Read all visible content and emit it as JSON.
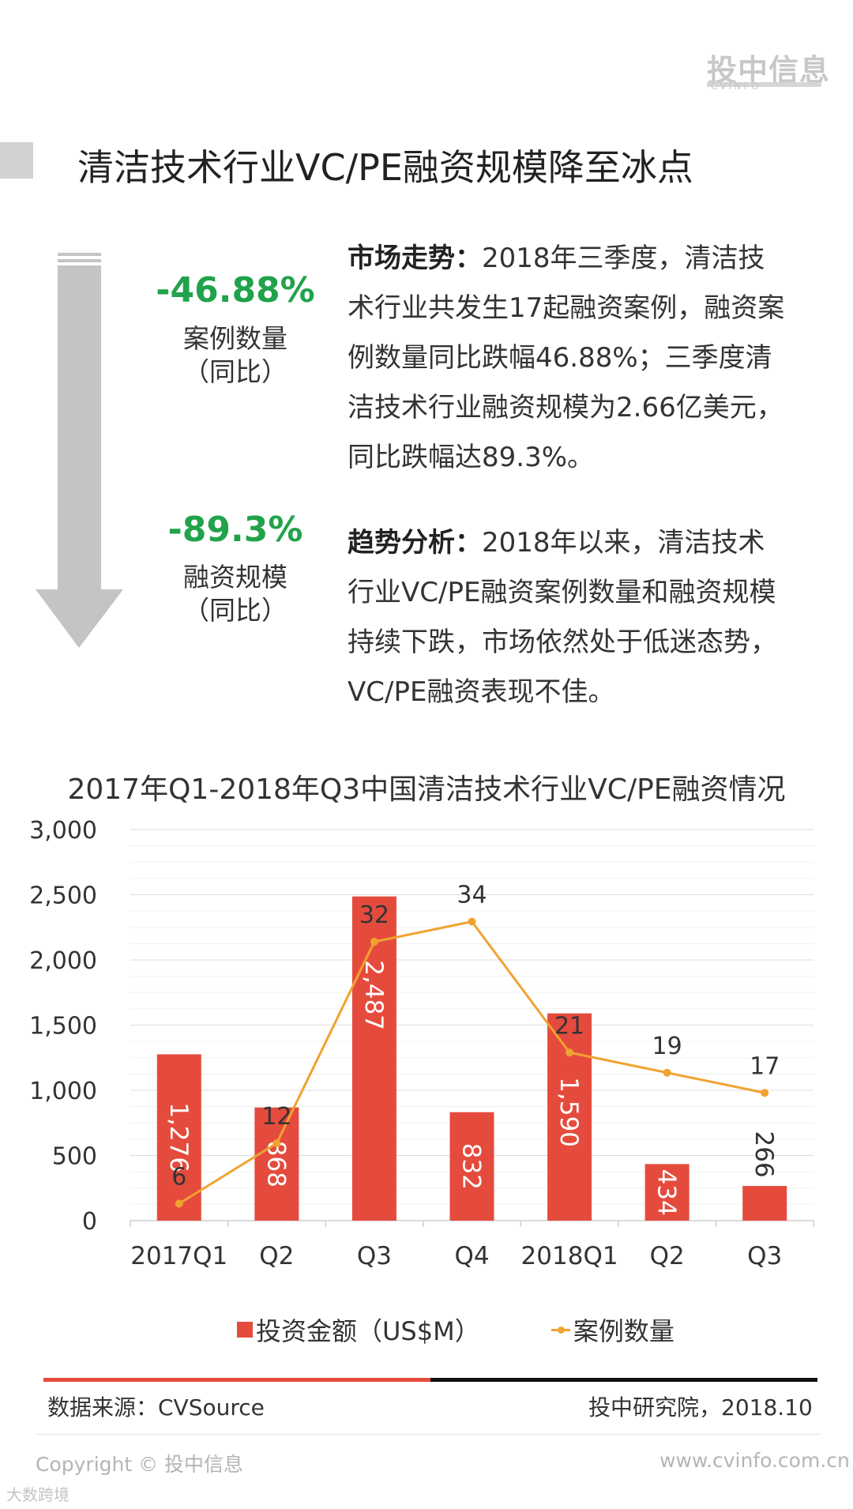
{
  "logo": {
    "main": "投中信息",
    "sub": "CVINFO"
  },
  "header": {
    "title": "清洁技术行业VC/PE融资规模降至冰点"
  },
  "stats": [
    {
      "value": "-46.88%",
      "label": "案例数量",
      "sub": "（同比）"
    },
    {
      "value": "-89.3%",
      "label": "融资规模",
      "sub": "（同比）"
    }
  ],
  "colors": {
    "accent_green": "#21a24b",
    "bar_red": "#e54b3d",
    "line_orange": "#f0a330",
    "arrow_gray": "#c4c4c4"
  },
  "paragraphs": [
    {
      "heading": "市场走势：",
      "body": "2018年三季度，清洁技术行业共发生17起融资案例，融资案例数量同比跌幅46.88%；三季度清洁技术行业融资规模为2.66亿美元，同比跌幅达89.3%。"
    },
    {
      "heading": "趋势分析：",
      "body": "2018年以来，清洁技术行业VC/PE融资案例数量和融资规模持续下跌，市场依然处于低迷态势，VC/PE融资表现不佳。"
    }
  ],
  "chart_data": {
    "type": "bar",
    "title": "2017年Q1-2018年Q3中国清洁技术行业VC/PE融资情况",
    "categories": [
      "2017Q1",
      "Q2",
      "Q3",
      "Q4",
      "2018Q1",
      "Q2",
      "Q3"
    ],
    "series": [
      {
        "name": "投资金额（US$M）",
        "type": "bar",
        "values": [
          1276,
          868,
          2487,
          832,
          1590,
          434,
          266
        ],
        "value_labels": [
          "1,276",
          "868",
          "2,487",
          "832",
          "1,590",
          "434",
          "266"
        ],
        "color": "#e54b3d"
      },
      {
        "name": "案例数量",
        "type": "line",
        "values": [
          6,
          12,
          32,
          34,
          21,
          19,
          17
        ],
        "color": "#f0a330"
      }
    ],
    "ylim": [
      0,
      3000
    ],
    "yticks": [
      "0",
      "500",
      "1,000",
      "1,500",
      "2,000",
      "2,500",
      "3,000"
    ],
    "grid": true,
    "legend_position": "bottom"
  },
  "footer": {
    "source": "数据来源：CVSource",
    "org": "投中研究院，2018.10",
    "copyright": "Copyright © 投中信息",
    "website": "www.cvinfo.com.cn",
    "watermark": "大数跨境"
  }
}
